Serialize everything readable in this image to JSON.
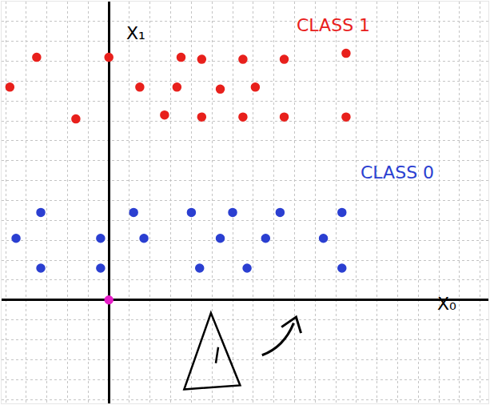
{
  "chart_data": {
    "type": "scatter",
    "series": [
      {
        "color": "#e8201c",
        "marker": "circle",
        "x": [
          -3.5,
          0,
          3.5,
          4.5,
          6.5,
          8.5,
          11.5,
          -4.8,
          1.5,
          3.3,
          5.4,
          7.1,
          -1.6,
          2.7,
          4.5,
          6.5,
          8.5,
          11.5
        ],
        "y": [
          12.2,
          12.2,
          12.2,
          12.1,
          12.1,
          12.1,
          12.4,
          10.7,
          10.7,
          10.7,
          10.6,
          10.7,
          9.1,
          9.3,
          9.2,
          9.2,
          9.2,
          9.2
        ]
      },
      {
        "color": "#2b3fd1",
        "marker": "circle",
        "x": [
          -3.3,
          1.2,
          4,
          6,
          8.3,
          11.3,
          -4.5,
          -0.4,
          1.7,
          5.4,
          7.6,
          10.4,
          -3.3,
          -0.4,
          4.4,
          6.7,
          11.3
        ],
        "y": [
          4.4,
          4.4,
          4.4,
          4.4,
          4.4,
          4.4,
          3.1,
          3.1,
          3.1,
          3.1,
          3.1,
          3.1,
          1.6,
          1.6,
          1.6,
          1.6,
          1.6
        ]
      },
      {
        "color": "#e61ec8",
        "marker": "circle",
        "x": [
          0
        ],
        "y": [
          0
        ]
      }
    ],
    "annotations": [
      {
        "text": "CLASS 1",
        "x": 10.9,
        "y": 13.8,
        "color": "#e8201c"
      },
      {
        "text": "CLASS 0",
        "x": 14,
        "y": 6.4,
        "color": "#2b3fd1"
      },
      {
        "text": "X₁",
        "x": 1.3,
        "y": 13.4,
        "color": "#000000"
      },
      {
        "text": "X₀",
        "x": 16.4,
        "y": -0.2,
        "color": "#000000"
      }
    ],
    "xlim": [
      -5.2,
      18.4
    ],
    "ylim": [
      -5.2,
      15
    ],
    "xticks": [
      -5,
      -4,
      -3,
      -2,
      -1,
      0,
      1,
      2,
      3,
      4,
      5,
      6,
      7,
      8,
      9,
      10,
      11,
      12,
      13,
      14,
      15,
      16,
      17,
      18
    ],
    "yticks": [
      -5,
      -4,
      -3,
      -2,
      -1,
      0,
      1,
      2,
      3,
      4,
      5,
      6,
      7,
      8,
      9,
      10,
      11,
      12,
      13,
      14,
      15
    ],
    "grid": true,
    "tick_labels": false
  }
}
